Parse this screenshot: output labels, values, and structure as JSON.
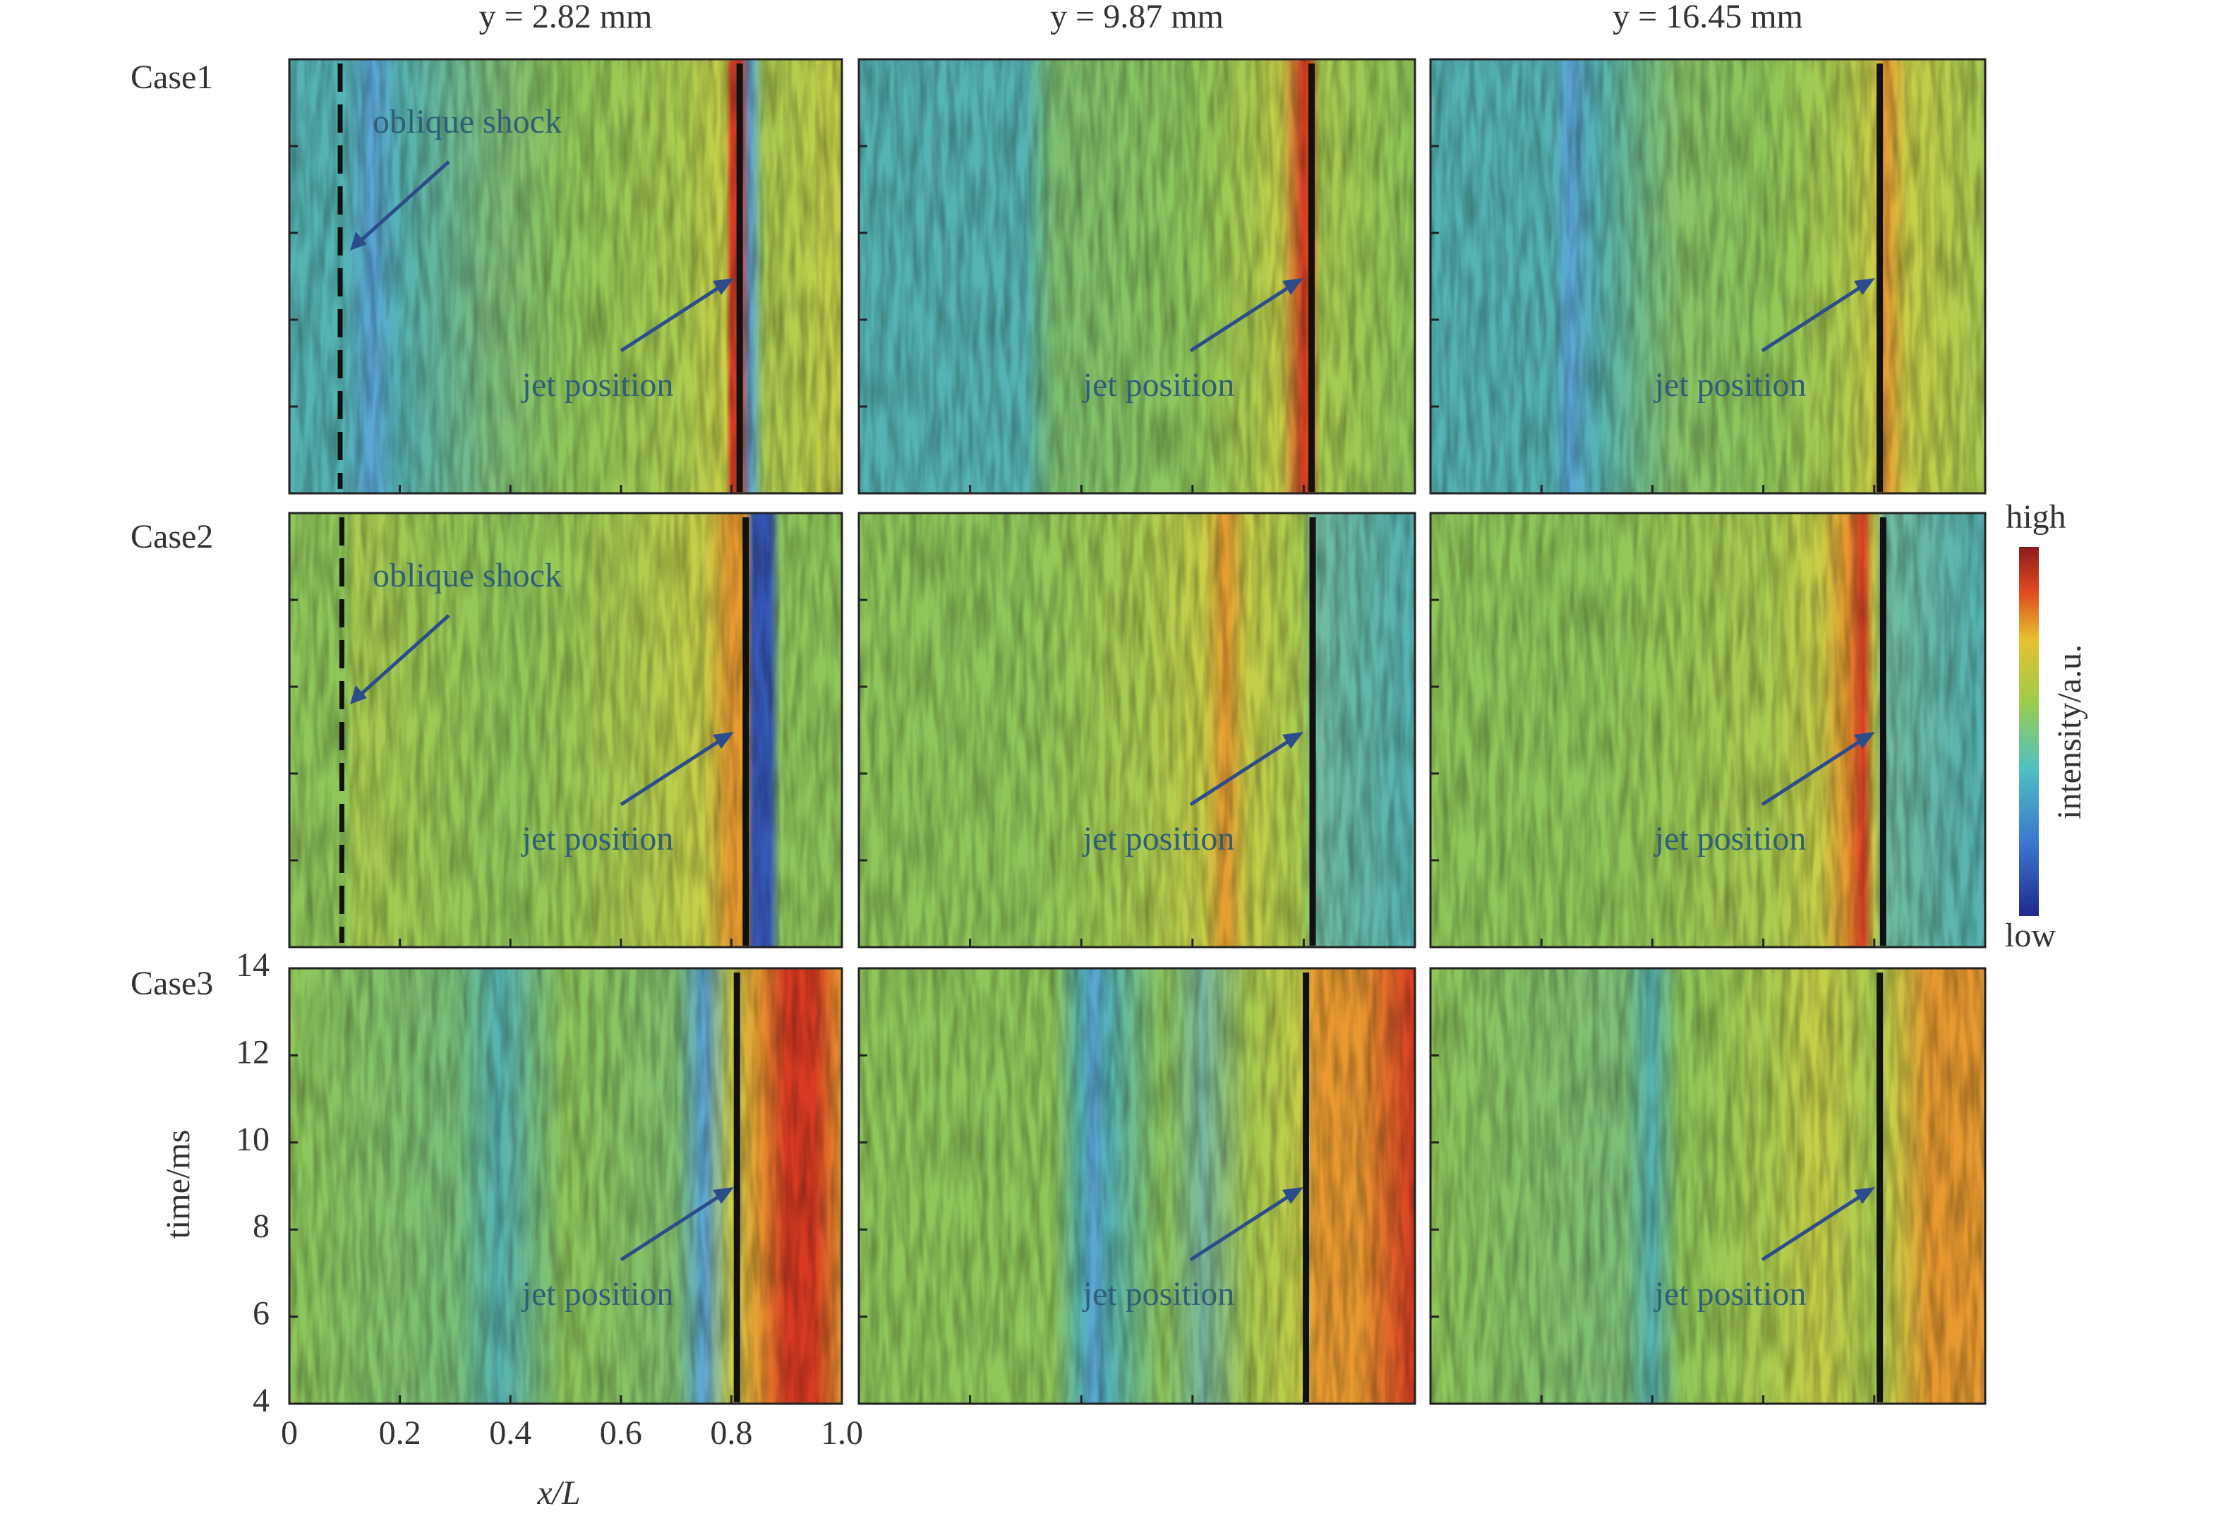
{
  "columns": [
    "y = 2.82 mm",
    "y = 9.87 mm",
    "y = 16.45 mm"
  ],
  "rows": [
    "Case1",
    "Case2",
    "Case3"
  ],
  "annotations": {
    "shock": "oblique shock",
    "jet": "jet position"
  },
  "x_axis": {
    "label": "x/L",
    "lim": [
      0,
      1
    ],
    "ticks": [
      0,
      0.2,
      0.4,
      0.6,
      0.8,
      {
        "value": 1,
        "label": "1.0"
      }
    ]
  },
  "y_axis": {
    "label": "time/ms",
    "lim": [
      4,
      14
    ],
    "ticks": [
      4,
      6,
      8,
      10,
      12,
      14
    ]
  },
  "colorbar": {
    "high": "high",
    "low": "low",
    "label": "intensity/a.u."
  },
  "jet_x": [
    [
      0.815,
      0.814,
      0.81
    ],
    [
      0.826,
      0.816,
      0.816
    ],
    [
      0.81,
      0.804,
      0.81
    ]
  ],
  "shock_x": [
    0.092,
    0.095
  ]
}
